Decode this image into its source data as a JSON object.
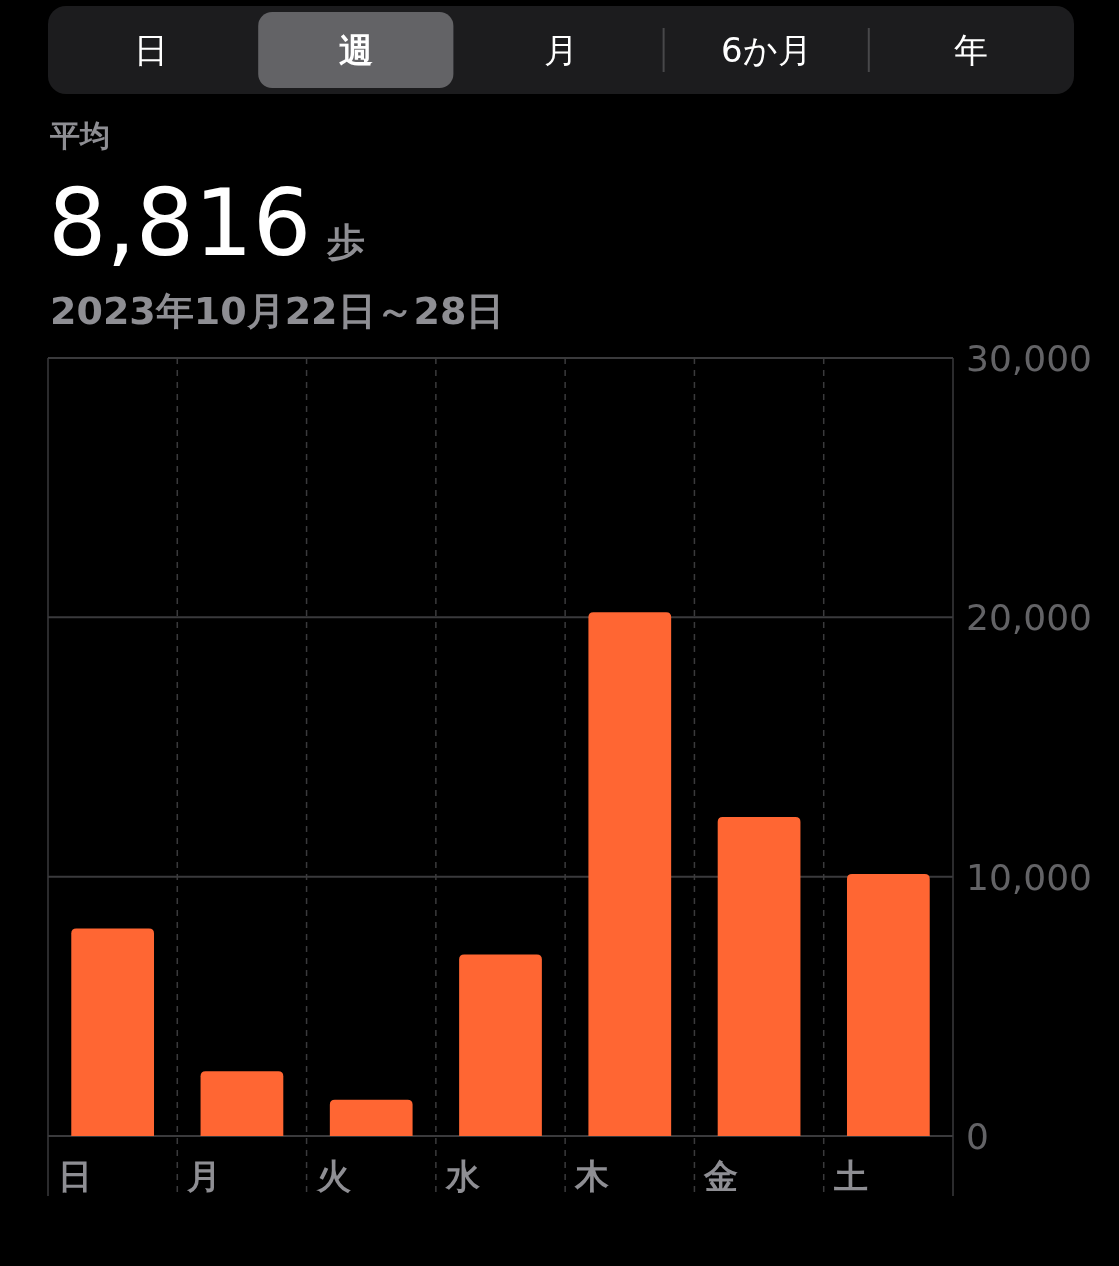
{
  "chart_data": {
    "type": "bar",
    "title": "8,816",
    "ylabel": "歩",
    "subtitle": "2023年10月22日～28日",
    "annotations": [
      "日",
      "週",
      "月",
      "6か月",
      "年",
      "平均"
    ],
    "categories": [
      "日",
      "月",
      "火",
      "水",
      "木",
      "金",
      "土"
    ],
    "values": [
      8000,
      2500,
      1400,
      7000,
      20200,
      12300,
      10100
    ],
    "color": "#ff6633",
    "ylim": [
      0,
      30000
    ],
    "yticks": [
      {
        "value": 0,
        "label": "0"
      },
      {
        "value": 10000,
        "label": "10,000"
      },
      {
        "value": 20000,
        "label": "20,000"
      },
      {
        "value": 30000,
        "label": "30,000"
      }
    ],
    "grid": true
  }
}
